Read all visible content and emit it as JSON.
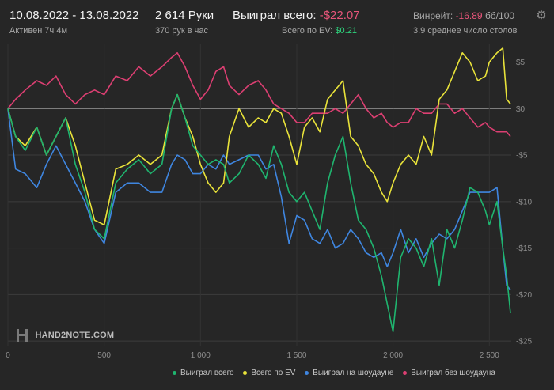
{
  "header": {
    "date_range": "10.08.2022 - 13.08.2022",
    "active": "Активен 7ч 4м",
    "hands": "2 614 Руки",
    "hands_per_hour": "370 рук в час",
    "won_total_label": "Выиграл всего:",
    "won_total_value": "-$22.07",
    "ev_label": "Всего по EV:",
    "ev_value": "$0.21",
    "winrate_label": "Винрейт:",
    "winrate_value": "-16.89",
    "winrate_unit": "бб/100",
    "avg_tables": "3.9 среднее число столов",
    "gear_icon": "gear-icon"
  },
  "logo_text": "HAND2NOTE.COM",
  "colors": {
    "won_total": "#1fb56f",
    "ev": "#e9e33a",
    "showdown": "#3f86e0",
    "non_showdown": "#dc3f72"
  },
  "chart_data": {
    "type": "line",
    "title": "",
    "xlabel": "",
    "ylabel": "",
    "xlim": [
      0,
      2614
    ],
    "ylim": [
      -25.5,
      7
    ],
    "x_ticks": [
      0,
      500,
      1000,
      1500,
      2000,
      2500
    ],
    "x_tick_labels": [
      "0",
      "500",
      "1 000",
      "1 500",
      "2 000",
      "2 500"
    ],
    "y_ticks": [
      5,
      0,
      -5,
      -10,
      -15,
      -20,
      -25
    ],
    "y_tick_labels": [
      "$5",
      "$0",
      "-$5",
      "-$10",
      "-$15",
      "-$20",
      "-$25"
    ],
    "grid": true,
    "legend_position": "bottom-right",
    "series": [
      {
        "name": "Выиграл всего",
        "key": "won_total",
        "x": [
          0,
          40,
          90,
          150,
          200,
          250,
          300,
          350,
          400,
          450,
          500,
          560,
          620,
          680,
          740,
          800,
          850,
          880,
          920,
          960,
          1000,
          1040,
          1080,
          1120,
          1150,
          1200,
          1250,
          1300,
          1340,
          1380,
          1420,
          1460,
          1500,
          1540,
          1580,
          1620,
          1660,
          1700,
          1740,
          1780,
          1820,
          1860,
          1900,
          1940,
          1970,
          2000,
          2040,
          2080,
          2120,
          2160,
          2200,
          2240,
          2280,
          2320,
          2360,
          2400,
          2440,
          2480,
          2500,
          2540,
          2570,
          2590,
          2610
        ],
        "values": [
          0,
          -3,
          -4.5,
          -2,
          -5,
          -3,
          -1,
          -6,
          -9,
          -13,
          -14,
          -8,
          -6.5,
          -5.5,
          -7,
          -6,
          0,
          1.5,
          -1,
          -4,
          -5,
          -6,
          -5.5,
          -6,
          -8,
          -7,
          -5,
          -6,
          -7.5,
          -4,
          -6,
          -9,
          -10,
          -9,
          -11,
          -13,
          -8,
          -5,
          -3,
          -8,
          -12,
          -13,
          -15,
          -18,
          -21,
          -24,
          -16,
          -14,
          -15,
          -17,
          -14,
          -19,
          -13,
          -15,
          -12,
          -8.5,
          -9,
          -11,
          -12.5,
          -10,
          -15,
          -18,
          -22
        ]
      },
      {
        "name": "Всего по EV",
        "key": "ev",
        "x": [
          0,
          40,
          90,
          150,
          200,
          250,
          300,
          350,
          400,
          450,
          500,
          560,
          620,
          680,
          740,
          800,
          850,
          880,
          920,
          960,
          1000,
          1040,
          1080,
          1120,
          1150,
          1200,
          1250,
          1300,
          1340,
          1380,
          1420,
          1460,
          1500,
          1540,
          1580,
          1620,
          1660,
          1700,
          1740,
          1780,
          1820,
          1860,
          1900,
          1940,
          1970,
          2000,
          2040,
          2080,
          2120,
          2160,
          2200,
          2240,
          2280,
          2320,
          2360,
          2400,
          2440,
          2480,
          2500,
          2540,
          2570,
          2590,
          2610
        ],
        "values": [
          0,
          -3,
          -4,
          -2,
          -5,
          -3,
          -1,
          -4,
          -8,
          -12,
          -12.5,
          -6.5,
          -6,
          -5,
          -6,
          -5,
          0,
          1.5,
          -1,
          -3,
          -6,
          -8,
          -9,
          -8,
          -3,
          0,
          -2,
          -1,
          -1.5,
          0,
          -0.5,
          -3,
          -6,
          -2,
          -1,
          -2.5,
          1,
          2,
          3,
          -3,
          -4,
          -6,
          -7,
          -9,
          -10,
          -8,
          -6,
          -5,
          -6,
          -3,
          -5,
          1,
          2,
          4,
          6,
          5,
          3,
          3.5,
          5,
          6,
          6.5,
          1,
          0.5
        ]
      },
      {
        "name": "Выиграл на шоудауне",
        "key": "showdown",
        "x": [
          0,
          40,
          90,
          150,
          200,
          250,
          300,
          350,
          400,
          450,
          500,
          560,
          620,
          680,
          740,
          800,
          850,
          880,
          920,
          960,
          1000,
          1040,
          1080,
          1120,
          1150,
          1200,
          1250,
          1300,
          1340,
          1380,
          1420,
          1460,
          1500,
          1540,
          1580,
          1620,
          1660,
          1700,
          1740,
          1780,
          1820,
          1860,
          1900,
          1940,
          1970,
          2000,
          2040,
          2080,
          2120,
          2160,
          2200,
          2240,
          2280,
          2320,
          2360,
          2400,
          2440,
          2480,
          2500,
          2540,
          2570,
          2590,
          2610
        ],
        "values": [
          0,
          -6.5,
          -7,
          -8.5,
          -6,
          -4,
          -6,
          -8,
          -10,
          -13,
          -14.5,
          -9,
          -8,
          -8,
          -9,
          -9,
          -6,
          -5,
          -5.5,
          -7,
          -7,
          -6,
          -6.5,
          -5,
          -6,
          -5.5,
          -5,
          -5,
          -6.5,
          -6,
          -9.5,
          -14.5,
          -11.5,
          -12,
          -14,
          -14.5,
          -13,
          -15,
          -14.5,
          -13,
          -14,
          -15.5,
          -16,
          -15.5,
          -17,
          -15.5,
          -13,
          -15.5,
          -14,
          -16,
          -14.5,
          -13.5,
          -14,
          -13,
          -11,
          -9,
          -9,
          -9,
          -9,
          -8.5,
          -15,
          -19,
          -19.5
        ]
      },
      {
        "name": "Выиграл без шоудауна",
        "key": "non_showdown",
        "x": [
          0,
          40,
          90,
          150,
          200,
          250,
          300,
          350,
          400,
          450,
          500,
          560,
          620,
          680,
          740,
          800,
          850,
          880,
          920,
          960,
          1000,
          1040,
          1080,
          1120,
          1150,
          1200,
          1250,
          1300,
          1340,
          1380,
          1420,
          1460,
          1500,
          1540,
          1580,
          1620,
          1660,
          1700,
          1740,
          1780,
          1820,
          1860,
          1900,
          1940,
          1970,
          2000,
          2040,
          2080,
          2120,
          2160,
          2200,
          2240,
          2280,
          2320,
          2360,
          2400,
          2440,
          2480,
          2500,
          2540,
          2570,
          2590,
          2610
        ],
        "values": [
          0,
          1,
          2,
          3,
          2.5,
          3.5,
          1.5,
          0.5,
          1.5,
          2,
          1.5,
          3.5,
          3,
          4.5,
          3.5,
          4.5,
          5.5,
          6,
          4.5,
          2.5,
          1,
          2,
          4,
          4.5,
          2.5,
          1.5,
          2.5,
          3,
          2,
          0.5,
          0,
          -0.5,
          -1.5,
          -1.5,
          -0.5,
          -0.5,
          -0.5,
          0,
          -0.5,
          0.5,
          1.5,
          0,
          -1,
          -0.5,
          -1.5,
          -2,
          -1.5,
          -1.5,
          0,
          -0.5,
          -0.5,
          0.5,
          0.5,
          -0.5,
          0,
          -1,
          -2,
          -1.5,
          -2,
          -2.5,
          -2.5,
          -2.5,
          -3
        ]
      }
    ]
  }
}
